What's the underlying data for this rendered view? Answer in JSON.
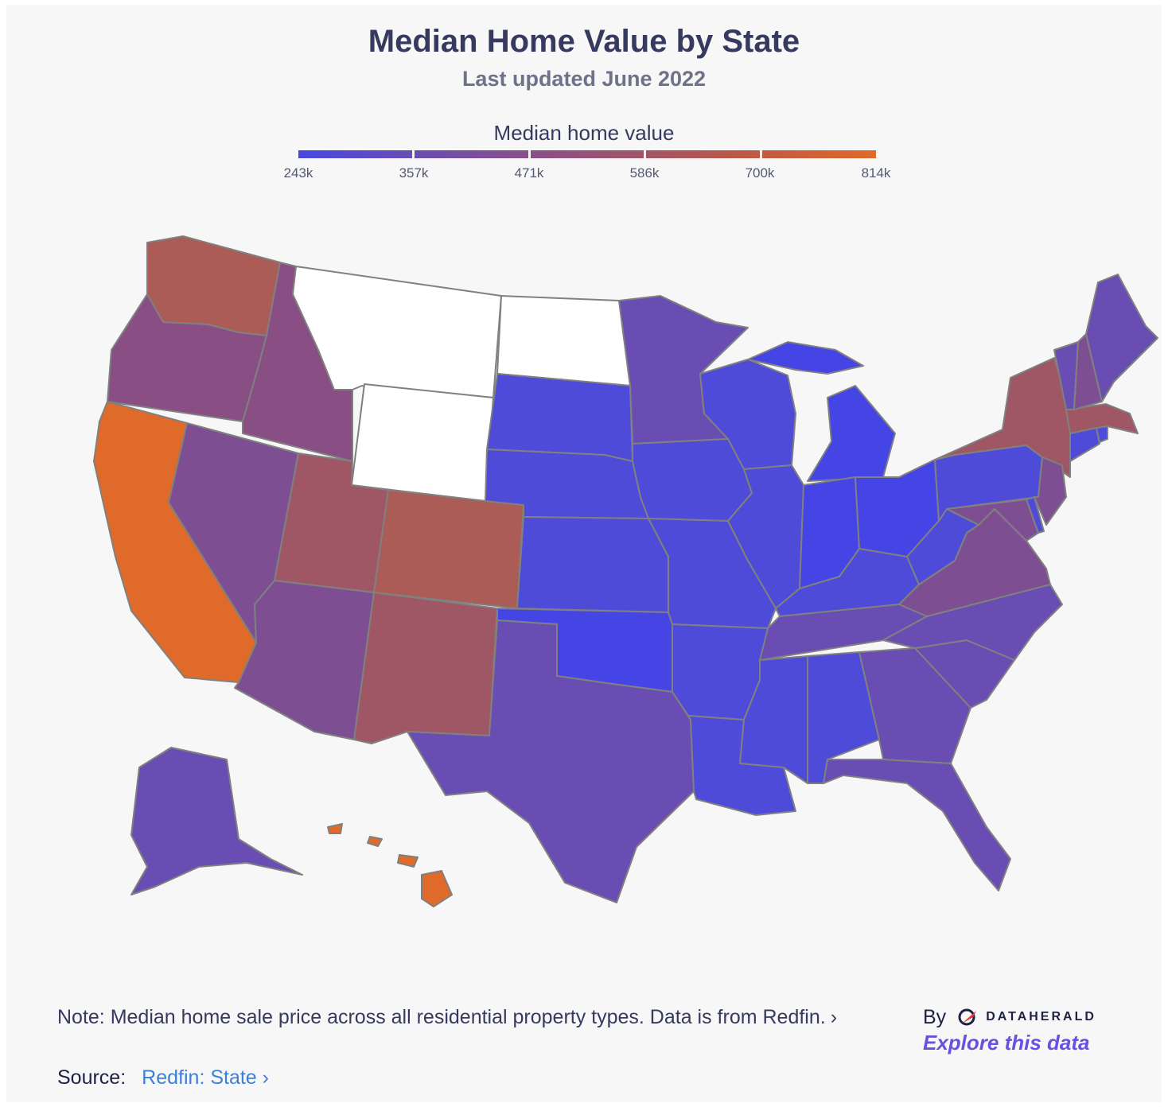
{
  "title": "Median Home Value by State",
  "subtitle": "Last updated June 2022",
  "legend": {
    "title": "Median home value",
    "colors": [
      "#4747e4",
      "#6a4db2",
      "#8a4f8a",
      "#a25566",
      "#c15a40"
    ],
    "end_color": "#e06a2a",
    "ticks": [
      "243k",
      "357k",
      "471k",
      "586k",
      "700k",
      "814k"
    ]
  },
  "palette": {
    "none": "#ffffff",
    "v1": "#4545e5",
    "v2": "#4d4bd8",
    "v3": "#6a4db2",
    "v4": "#7d4f92",
    "v5": "#894f84",
    "v6": "#a05765",
    "v7": "#ab5c56",
    "v8": "#e06a2a",
    "border": "#808080"
  },
  "footer": {
    "note": "Note: Median home sale price across all residential property types. Data is from Redfin.",
    "source_label": "Source:",
    "source_link": "Redfin: State",
    "by_label": "By",
    "brand": "DATAHERALD",
    "explore": "Explore this data"
  }
}
